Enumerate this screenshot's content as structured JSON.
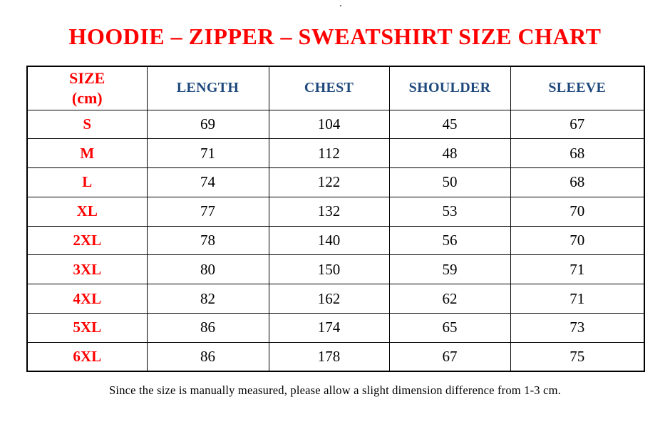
{
  "page": {
    "title": "HOODIE – ZIPPER – SWEATSHIRT SIZE CHART",
    "stray_mark": ".",
    "footnote": "Since the size is manually measured, please allow a slight dimension difference from 1-3 cm."
  },
  "table": {
    "size_header": [
      "SIZE",
      "(cm)"
    ],
    "columns": [
      "LENGTH",
      "CHEST",
      "SHOULDER",
      "SLEEVE"
    ],
    "rows": [
      {
        "size": "S",
        "values": [
          "69",
          "104",
          "45",
          "67"
        ]
      },
      {
        "size": "M",
        "values": [
          "71",
          "112",
          "48",
          "68"
        ]
      },
      {
        "size": "L",
        "values": [
          "74",
          "122",
          "50",
          "68"
        ]
      },
      {
        "size": "XL",
        "values": [
          "77",
          "132",
          "53",
          "70"
        ]
      },
      {
        "size": "2XL",
        "values": [
          "78",
          "140",
          "56",
          "70"
        ]
      },
      {
        "size": "3XL",
        "values": [
          "80",
          "150",
          "59",
          "71"
        ]
      },
      {
        "size": "4XL",
        "values": [
          "82",
          "162",
          "62",
          "71"
        ]
      },
      {
        "size": "5XL",
        "values": [
          "86",
          "174",
          "65",
          "73"
        ]
      },
      {
        "size": "6XL",
        "values": [
          "86",
          "178",
          "67",
          "75"
        ]
      }
    ]
  },
  "colors": {
    "title_red": "#ff0000",
    "size_label_red": "#ff0000",
    "header_blue": "#1f497d",
    "value_black": "#000000",
    "border_black": "#000000",
    "background": "#ffffff"
  }
}
